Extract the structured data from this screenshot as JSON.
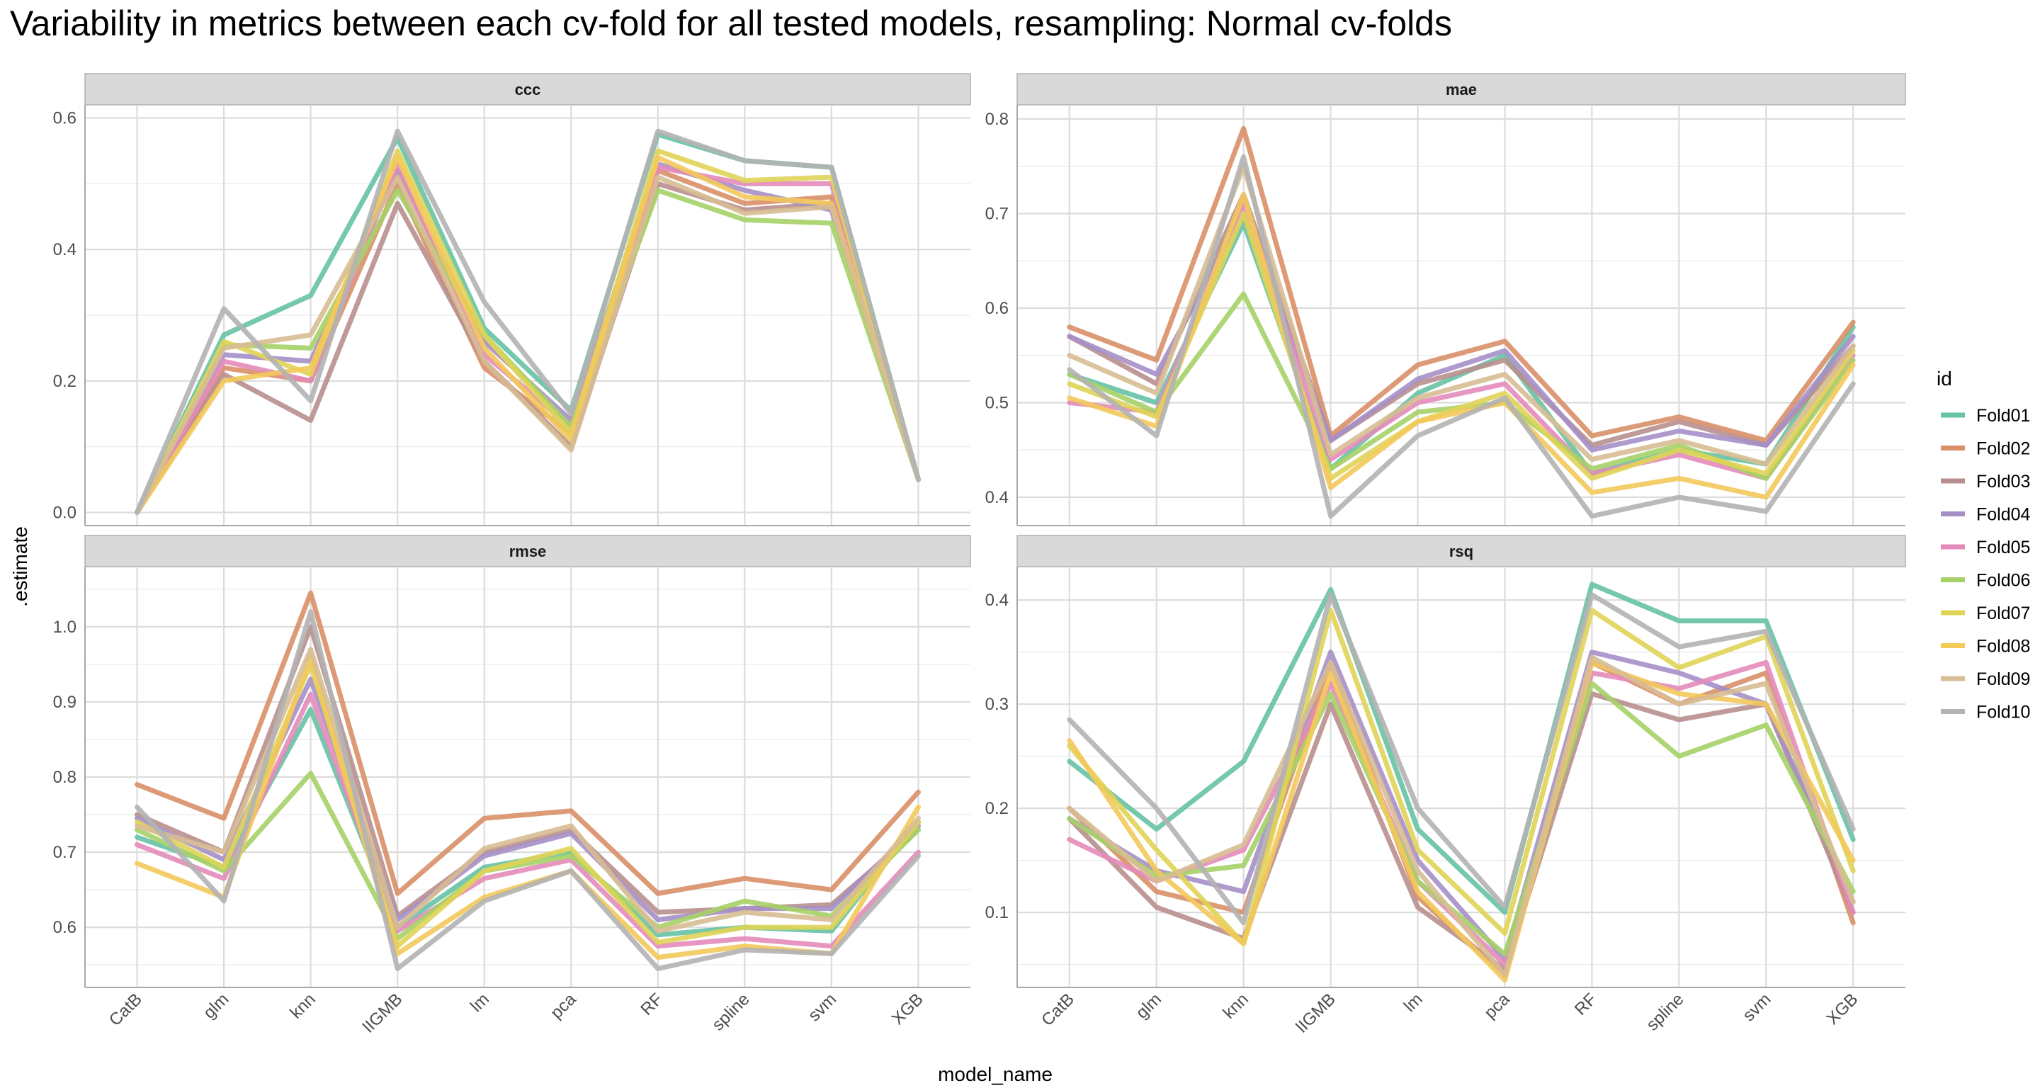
{
  "title": "Variability in metrics between each cv-fold for all tested models, resampling: Normal cv-folds",
  "x_axis_title": "model_name",
  "y_axis_title": ".estimate",
  "legend": {
    "title": "id",
    "placement": "right"
  },
  "chart_data": {
    "type": "line",
    "categories": [
      "CatB",
      "glm",
      "knn",
      "lIGMB",
      "lm",
      "pca",
      "RF",
      "spline",
      "svm",
      "XGB"
    ],
    "series_names": [
      "Fold01",
      "Fold02",
      "Fold03",
      "Fold04",
      "Fold05",
      "Fold06",
      "Fold07",
      "Fold08",
      "Fold09",
      "Fold10"
    ],
    "colors": [
      "#66C2A5",
      "#D98F68",
      "#B88F8E",
      "#A58FC6",
      "#E38BB9",
      "#A6D167",
      "#E0D456",
      "#F3C95A",
      "#D7BD94",
      "#B3B3B3"
    ],
    "grid": true,
    "panels": [
      {
        "name": "ccc",
        "ylim": [
          -0.02,
          0.62
        ],
        "yticks": [
          0.0,
          0.2,
          0.4,
          0.6
        ],
        "ytick_labels": [
          "0.0",
          "0.2",
          "0.4",
          "0.6"
        ],
        "series": [
          {
            "name": "Fold01",
            "values": [
              0.0,
              0.27,
              0.33,
              0.57,
              0.28,
              0.155,
              0.575,
              0.535,
              0.525,
              0.05
            ]
          },
          {
            "name": "Fold02",
            "values": [
              0.0,
              0.22,
              0.2,
              0.5,
              0.22,
              0.12,
              0.52,
              0.47,
              0.48,
              0.05
            ]
          },
          {
            "name": "Fold03",
            "values": [
              0.0,
              0.21,
              0.14,
              0.47,
              0.23,
              0.1,
              0.5,
              0.46,
              0.47,
              0.05
            ]
          },
          {
            "name": "Fold04",
            "values": [
              0.0,
              0.24,
              0.23,
              0.52,
              0.26,
              0.14,
              0.53,
              0.49,
              0.46,
              0.05
            ]
          },
          {
            "name": "Fold05",
            "values": [
              0.0,
              0.23,
              0.2,
              0.53,
              0.24,
              0.13,
              0.525,
              0.5,
              0.5,
              0.05
            ]
          },
          {
            "name": "Fold06",
            "values": [
              0.0,
              0.255,
              0.25,
              0.49,
              0.27,
              0.13,
              0.49,
              0.445,
              0.44,
              0.05
            ]
          },
          {
            "name": "Fold07",
            "values": [
              0.0,
              0.26,
              0.21,
              0.55,
              0.27,
              0.12,
              0.55,
              0.505,
              0.51,
              0.05
            ]
          },
          {
            "name": "Fold08",
            "values": [
              0.0,
              0.2,
              0.22,
              0.54,
              0.25,
              0.11,
              0.54,
              0.48,
              0.47,
              0.05
            ]
          },
          {
            "name": "Fold09",
            "values": [
              0.0,
              0.25,
              0.27,
              0.51,
              0.23,
              0.095,
              0.51,
              0.455,
              0.465,
              0.05
            ]
          },
          {
            "name": "Fold10",
            "values": [
              0.0,
              0.31,
              0.17,
              0.58,
              0.32,
              0.15,
              0.58,
              0.535,
              0.525,
              0.05
            ]
          }
        ]
      },
      {
        "name": "mae",
        "ylim": [
          0.37,
          0.815
        ],
        "yticks": [
          0.4,
          0.5,
          0.6,
          0.7,
          0.8
        ],
        "ytick_labels": [
          "0.4",
          "0.5",
          "0.6",
          "0.7",
          "0.8"
        ],
        "series": [
          {
            "name": "Fold01",
            "values": [
              0.53,
              0.5,
              0.69,
              0.43,
              0.51,
              0.55,
              0.425,
              0.45,
              0.435,
              0.58
            ]
          },
          {
            "name": "Fold02",
            "values": [
              0.58,
              0.545,
              0.79,
              0.465,
              0.54,
              0.565,
              0.465,
              0.485,
              0.46,
              0.585
            ]
          },
          {
            "name": "Fold03",
            "values": [
              0.57,
              0.52,
              0.72,
              0.46,
              0.52,
              0.545,
              0.455,
              0.48,
              0.455,
              0.56
            ]
          },
          {
            "name": "Fold04",
            "values": [
              0.57,
              0.53,
              0.7,
              0.46,
              0.525,
              0.555,
              0.45,
              0.47,
              0.455,
              0.57
            ]
          },
          {
            "name": "Fold05",
            "values": [
              0.5,
              0.49,
              0.71,
              0.44,
              0.5,
              0.52,
              0.425,
              0.445,
              0.42,
              0.55
            ]
          },
          {
            "name": "Fold06",
            "values": [
              0.53,
              0.49,
              0.615,
              0.43,
              0.49,
              0.5,
              0.43,
              0.455,
              0.42,
              0.545
            ]
          },
          {
            "name": "Fold07",
            "values": [
              0.52,
              0.485,
              0.7,
              0.42,
              0.48,
              0.51,
              0.42,
              0.45,
              0.425,
              0.555
            ]
          },
          {
            "name": "Fold08",
            "values": [
              0.505,
              0.475,
              0.72,
              0.41,
              0.48,
              0.5,
              0.405,
              0.42,
              0.4,
              0.54
            ]
          },
          {
            "name": "Fold09",
            "values": [
              0.55,
              0.51,
              0.75,
              0.445,
              0.505,
              0.53,
              0.44,
              0.46,
              0.435,
              0.56
            ]
          },
          {
            "name": "Fold10",
            "values": [
              0.535,
              0.465,
              0.76,
              0.38,
              0.465,
              0.505,
              0.38,
              0.4,
              0.385,
              0.52
            ]
          }
        ]
      },
      {
        "name": "rmse",
        "ylim": [
          0.52,
          1.08
        ],
        "yticks": [
          0.6,
          0.7,
          0.8,
          0.9,
          1.0
        ],
        "ytick_labels": [
          "0.6",
          "0.7",
          "0.8",
          "0.9",
          "1.0"
        ],
        "series": [
          {
            "name": "Fold01",
            "values": [
              0.72,
              0.68,
              0.89,
              0.6,
              0.68,
              0.7,
              0.59,
              0.6,
              0.595,
              0.74
            ]
          },
          {
            "name": "Fold02",
            "values": [
              0.79,
              0.745,
              1.045,
              0.645,
              0.745,
              0.755,
              0.645,
              0.665,
              0.65,
              0.78
            ]
          },
          {
            "name": "Fold03",
            "values": [
              0.75,
              0.7,
              1.0,
              0.615,
              0.7,
              0.73,
              0.62,
              0.625,
              0.63,
              0.73
            ]
          },
          {
            "name": "Fold04",
            "values": [
              0.745,
              0.69,
              0.93,
              0.61,
              0.695,
              0.725,
              0.61,
              0.625,
              0.625,
              0.735
            ]
          },
          {
            "name": "Fold05",
            "values": [
              0.71,
              0.665,
              0.91,
              0.595,
              0.665,
              0.69,
              0.575,
              0.585,
              0.575,
              0.7
            ]
          },
          {
            "name": "Fold06",
            "values": [
              0.73,
              0.675,
              0.805,
              0.585,
              0.675,
              0.695,
              0.6,
              0.635,
              0.615,
              0.73
            ]
          },
          {
            "name": "Fold07",
            "values": [
              0.74,
              0.68,
              0.95,
              0.575,
              0.675,
              0.705,
              0.58,
              0.6,
              0.6,
              0.74
            ]
          },
          {
            "name": "Fold08",
            "values": [
              0.685,
              0.64,
              0.96,
              0.565,
              0.64,
              0.675,
              0.56,
              0.575,
              0.565,
              0.76
            ]
          },
          {
            "name": "Fold09",
            "values": [
              0.735,
              0.7,
              0.97,
              0.6,
              0.705,
              0.735,
              0.595,
              0.62,
              0.61,
              0.745
            ]
          },
          {
            "name": "Fold10",
            "values": [
              0.76,
              0.635,
              1.02,
              0.545,
              0.635,
              0.675,
              0.545,
              0.57,
              0.565,
              0.695
            ]
          }
        ]
      },
      {
        "name": "rsq",
        "ylim": [
          0.028,
          0.432
        ],
        "yticks": [
          0.1,
          0.2,
          0.3,
          0.4
        ],
        "ytick_labels": [
          "0.1",
          "0.2",
          "0.3",
          "0.4"
        ],
        "series": [
          {
            "name": "Fold01",
            "values": [
              0.245,
              0.18,
              0.245,
              0.41,
              0.18,
              0.1,
              0.415,
              0.38,
              0.38,
              0.17
            ]
          },
          {
            "name": "Fold02",
            "values": [
              0.2,
              0.12,
              0.1,
              0.34,
              0.115,
              0.04,
              0.34,
              0.3,
              0.33,
              0.09
            ]
          },
          {
            "name": "Fold03",
            "values": [
              0.19,
              0.105,
              0.075,
              0.3,
              0.105,
              0.045,
              0.31,
              0.285,
              0.3,
              0.1
            ]
          },
          {
            "name": "Fold04",
            "values": [
              0.19,
              0.14,
              0.12,
              0.35,
              0.15,
              0.055,
              0.35,
              0.33,
              0.3,
              0.11
            ]
          },
          {
            "name": "Fold05",
            "values": [
              0.17,
              0.13,
              0.16,
              0.32,
              0.13,
              0.05,
              0.33,
              0.315,
              0.34,
              0.1
            ]
          },
          {
            "name": "Fold06",
            "values": [
              0.19,
              0.135,
              0.145,
              0.31,
              0.13,
              0.06,
              0.32,
              0.25,
              0.28,
              0.12
            ]
          },
          {
            "name": "Fold07",
            "values": [
              0.26,
              0.16,
              0.07,
              0.39,
              0.16,
              0.08,
              0.39,
              0.335,
              0.365,
              0.14
            ]
          },
          {
            "name": "Fold08",
            "values": [
              0.265,
              0.14,
              0.07,
              0.33,
              0.12,
              0.035,
              0.34,
              0.31,
              0.3,
              0.15
            ]
          },
          {
            "name": "Fold09",
            "values": [
              0.2,
              0.13,
              0.165,
              0.34,
              0.14,
              0.04,
              0.345,
              0.3,
              0.32,
              0.11
            ]
          },
          {
            "name": "Fold10",
            "values": [
              0.285,
              0.2,
              0.09,
              0.405,
              0.2,
              0.105,
              0.405,
              0.355,
              0.37,
              0.18
            ]
          }
        ]
      }
    ]
  }
}
